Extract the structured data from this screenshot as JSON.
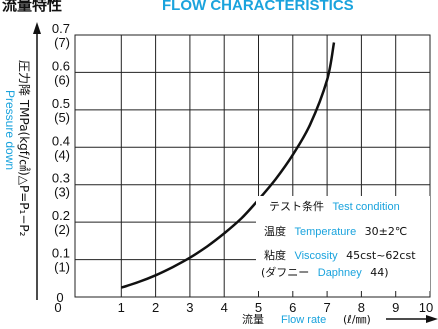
{
  "header": {
    "title_jp": "流量特性",
    "title_en": "FLOW CHARACTERISTICS"
  },
  "chart_data": {
    "type": "line",
    "x_axis": {
      "label_jp": "流量",
      "label_en": "Flow rate",
      "unit": "(ℓ/㎜)",
      "range": [
        0,
        10
      ],
      "ticks": [
        "0",
        "1",
        "2",
        "3",
        "4",
        "5",
        "6",
        "7",
        "8",
        "9",
        "10"
      ]
    },
    "y_axis": {
      "label_jp": "圧力降 TMPa(kgf/㎠)△P=P₁−P₂",
      "label_en": "Pressure down",
      "range": [
        0,
        0.7
      ],
      "ticks": [
        {
          "value": 0.0,
          "main": "0",
          "sub": ""
        },
        {
          "value": 0.1,
          "main": "0.1",
          "sub": "(1)"
        },
        {
          "value": 0.2,
          "main": "0.2",
          "sub": "(2)"
        },
        {
          "value": 0.3,
          "main": "0.3",
          "sub": "(3)"
        },
        {
          "value": 0.4,
          "main": "0.4",
          "sub": "(4)"
        },
        {
          "value": 0.5,
          "main": "0.5",
          "sub": "(5)"
        },
        {
          "value": 0.6,
          "main": "0.6",
          "sub": "(6)"
        },
        {
          "value": 0.7,
          "main": "0.7",
          "sub": "(7)"
        }
      ]
    },
    "series": [
      {
        "x": [
          1.0,
          1.5,
          2.0,
          2.5,
          3.0,
          3.5,
          4.0,
          4.5,
          5.0,
          5.5,
          6.0,
          6.5,
          7.0,
          7.2
        ],
        "y": [
          0.025,
          0.04,
          0.058,
          0.08,
          0.105,
          0.135,
          0.17,
          0.21,
          0.26,
          0.315,
          0.38,
          0.46,
          0.58,
          0.68
        ]
      }
    ],
    "grid": true,
    "legend_position": "none"
  },
  "test_condition": {
    "heading_jp": "テスト条件",
    "heading_en": "Test condition",
    "temp_jp": "温度",
    "temp_en": "Temperature",
    "temp_value": "30±2℃",
    "visc_jp": "粘度",
    "visc_en": "Viscosity",
    "visc_value": "45cst~62cst",
    "oil_open": "(ダフニー",
    "oil_en": "Daphney",
    "oil_close": "44)"
  },
  "colors": {
    "accent": "#1aa3dd",
    "line": "#111111",
    "grid": "#222222"
  }
}
